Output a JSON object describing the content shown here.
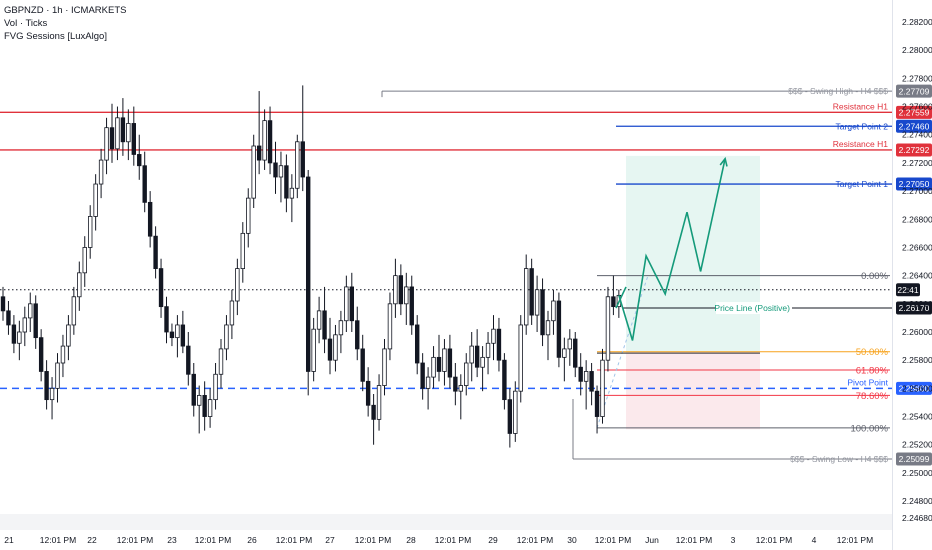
{
  "legend": {
    "symbol_line": "GBPNZD · 1h · ICMARKETS",
    "indicator_1": "Vol · Ticks",
    "indicator_2": "FVG Sessions [LuxAlgo]"
  },
  "colors": {
    "bull": "#ffffff",
    "bear": "#131722",
    "resistance": "#e0323c",
    "target": "#1848cc",
    "pivot": "#2962ff",
    "projection": "#149a7a",
    "fib_50": "#f7a21b",
    "fib_618": "#f23645",
    "fib_786": "#f23645",
    "swing": "#787b86",
    "long_zone": "#e6f6f2",
    "short_zone": "#fbe9ec"
  },
  "chart_data": {
    "type": "candlestick",
    "symbol": "GBPNZD",
    "timeframe": "1h",
    "exchange": "ICMARKETS",
    "ylim": [
      2.2466,
      2.2832
    ],
    "y_ticks": [
      "2.28200",
      "2.28000",
      "2.27800",
      "2.27600",
      "2.27400",
      "2.27200",
      "2.27000",
      "2.26800",
      "2.26600",
      "2.26400",
      "2.26200",
      "2.26000",
      "2.25800",
      "2.25600",
      "2.25400",
      "2.25200",
      "2.25000",
      "2.24800",
      "2.24680"
    ],
    "x_ticks": [
      "21",
      "12:01 PM",
      "22",
      "12:01 PM",
      "23",
      "12:01 PM",
      "26",
      "12:01 PM",
      "27",
      "12:01 PM",
      "28",
      "12:01 PM",
      "29",
      "12:01 PM",
      "30",
      "12:01 PM",
      "Jun",
      "12:01 PM",
      "3",
      "12:01 PM",
      "4",
      "12:01 PM"
    ],
    "price_levels": [
      {
        "label": "$$$ - Swing High - H4 $$$",
        "price": "2.27709",
        "value": 2.27709,
        "style": "swing"
      },
      {
        "label": "Resistance H1",
        "price": "2.27559",
        "value": 2.27559,
        "style": "resistance"
      },
      {
        "label": "Target Point 2",
        "price": "2.27460",
        "value": 2.2746,
        "style": "target"
      },
      {
        "label": "Resistance H1",
        "price": "2.27292",
        "value": 2.27292,
        "style": "resistance"
      },
      {
        "label": "Target Point 1",
        "price": "2.27050",
        "value": 2.2705,
        "style": "target"
      },
      {
        "label": "Price Line (Positive)",
        "price": "2.26170",
        "value": 2.2617,
        "style": "positive"
      },
      {
        "label": "Pivot Point",
        "price": "2.25600",
        "value": 2.256,
        "style": "pivot"
      },
      {
        "label": "$$$ - Swing Low - H4 $$$",
        "price": "2.25099",
        "value": 2.25099,
        "style": "swing"
      }
    ],
    "current_time": "22:41",
    "current_price_value": 2.263,
    "fib_levels": [
      {
        "label": "0.00%",
        "value": 2.264
      },
      {
        "label": "50.00%",
        "value": 2.2586
      },
      {
        "label": "61.80%",
        "value": 2.2573
      },
      {
        "label": "78.60%",
        "value": 2.2555
      },
      {
        "label": "100.00%",
        "value": 2.2532
      }
    ],
    "projection_path": [
      {
        "t": 113.0,
        "value": 2.2626
      },
      {
        "t": 115.5,
        "value": 2.2594
      },
      {
        "t": 118.0,
        "value": 2.2654
      },
      {
        "t": 121.5,
        "value": 2.2627
      },
      {
        "t": 125.5,
        "value": 2.2685
      },
      {
        "t": 128.0,
        "value": 2.2643
      },
      {
        "t": 132.5,
        "value": 2.2723
      }
    ],
    "candles": [
      {
        "o": 2.2625,
        "h": 2.2632,
        "l": 2.2608,
        "c": 2.2615
      },
      {
        "o": 2.2615,
        "h": 2.2622,
        "l": 2.2598,
        "c": 2.2605
      },
      {
        "o": 2.2605,
        "h": 2.2612,
        "l": 2.2585,
        "c": 2.2592
      },
      {
        "o": 2.2592,
        "h": 2.2608,
        "l": 2.258,
        "c": 2.26
      },
      {
        "o": 2.26,
        "h": 2.2618,
        "l": 2.259,
        "c": 2.261
      },
      {
        "o": 2.261,
        "h": 2.2628,
        "l": 2.26,
        "c": 2.262
      },
      {
        "o": 2.262,
        "h": 2.2626,
        "l": 2.2588,
        "c": 2.2596
      },
      {
        "o": 2.2596,
        "h": 2.2602,
        "l": 2.2565,
        "c": 2.2572
      },
      {
        "o": 2.2572,
        "h": 2.258,
        "l": 2.2545,
        "c": 2.2552
      },
      {
        "o": 2.2552,
        "h": 2.2568,
        "l": 2.2538,
        "c": 2.256
      },
      {
        "o": 2.256,
        "h": 2.2585,
        "l": 2.255,
        "c": 2.2578
      },
      {
        "o": 2.2578,
        "h": 2.2598,
        "l": 2.2568,
        "c": 2.259
      },
      {
        "o": 2.259,
        "h": 2.2612,
        "l": 2.258,
        "c": 2.2605
      },
      {
        "o": 2.2605,
        "h": 2.2632,
        "l": 2.2598,
        "c": 2.2625
      },
      {
        "o": 2.2625,
        "h": 2.265,
        "l": 2.2615,
        "c": 2.2642
      },
      {
        "o": 2.2642,
        "h": 2.2668,
        "l": 2.2632,
        "c": 2.266
      },
      {
        "o": 2.266,
        "h": 2.269,
        "l": 2.2652,
        "c": 2.2682
      },
      {
        "o": 2.2682,
        "h": 2.2712,
        "l": 2.2672,
        "c": 2.2705
      },
      {
        "o": 2.2705,
        "h": 2.273,
        "l": 2.2695,
        "c": 2.2722
      },
      {
        "o": 2.2722,
        "h": 2.2752,
        "l": 2.2712,
        "c": 2.2745
      },
      {
        "o": 2.2745,
        "h": 2.2762,
        "l": 2.272,
        "c": 2.273
      },
      {
        "o": 2.273,
        "h": 2.276,
        "l": 2.2722,
        "c": 2.2752
      },
      {
        "o": 2.2752,
        "h": 2.2766,
        "l": 2.2725,
        "c": 2.2735
      },
      {
        "o": 2.2735,
        "h": 2.2758,
        "l": 2.2722,
        "c": 2.2748
      },
      {
        "o": 2.2748,
        "h": 2.276,
        "l": 2.2718,
        "c": 2.2726
      },
      {
        "o": 2.2726,
        "h": 2.274,
        "l": 2.2708,
        "c": 2.2718
      },
      {
        "o": 2.2718,
        "h": 2.2728,
        "l": 2.2685,
        "c": 2.2692
      },
      {
        "o": 2.2692,
        "h": 2.27,
        "l": 2.266,
        "c": 2.2668
      },
      {
        "o": 2.2668,
        "h": 2.2675,
        "l": 2.2638,
        "c": 2.2645
      },
      {
        "o": 2.2645,
        "h": 2.2652,
        "l": 2.261,
        "c": 2.2618
      },
      {
        "o": 2.2618,
        "h": 2.2625,
        "l": 2.2592,
        "c": 2.26
      },
      {
        "o": 2.26,
        "h": 2.2606,
        "l": 2.259,
        "c": 2.2596
      },
      {
        "o": 2.2596,
        "h": 2.2612,
        "l": 2.2582,
        "c": 2.2605
      },
      {
        "o": 2.2605,
        "h": 2.2615,
        "l": 2.2585,
        "c": 2.259
      },
      {
        "o": 2.259,
        "h": 2.26,
        "l": 2.2562,
        "c": 2.257
      },
      {
        "o": 2.257,
        "h": 2.2578,
        "l": 2.254,
        "c": 2.2548
      },
      {
        "o": 2.2548,
        "h": 2.2562,
        "l": 2.2528,
        "c": 2.2555
      },
      {
        "o": 2.2555,
        "h": 2.2565,
        "l": 2.253,
        "c": 2.254
      },
      {
        "o": 2.254,
        "h": 2.256,
        "l": 2.2532,
        "c": 2.2552
      },
      {
        "o": 2.2552,
        "h": 2.2578,
        "l": 2.2545,
        "c": 2.257
      },
      {
        "o": 2.257,
        "h": 2.2595,
        "l": 2.256,
        "c": 2.2588
      },
      {
        "o": 2.2588,
        "h": 2.2612,
        "l": 2.258,
        "c": 2.2605
      },
      {
        "o": 2.2605,
        "h": 2.263,
        "l": 2.2595,
        "c": 2.2622
      },
      {
        "o": 2.2622,
        "h": 2.2652,
        "l": 2.2612,
        "c": 2.2645
      },
      {
        "o": 2.2645,
        "h": 2.2678,
        "l": 2.2635,
        "c": 2.267
      },
      {
        "o": 2.267,
        "h": 2.2702,
        "l": 2.266,
        "c": 2.2695
      },
      {
        "o": 2.2695,
        "h": 2.274,
        "l": 2.2688,
        "c": 2.2732
      },
      {
        "o": 2.2732,
        "h": 2.2771,
        "l": 2.2712,
        "c": 2.2722
      },
      {
        "o": 2.2722,
        "h": 2.2758,
        "l": 2.2715,
        "c": 2.275
      },
      {
        "o": 2.275,
        "h": 2.276,
        "l": 2.2712,
        "c": 2.272
      },
      {
        "o": 2.272,
        "h": 2.2735,
        "l": 2.2698,
        "c": 2.271
      },
      {
        "o": 2.271,
        "h": 2.2728,
        "l": 2.2692,
        "c": 2.2718
      },
      {
        "o": 2.2718,
        "h": 2.2726,
        "l": 2.2685,
        "c": 2.2695
      },
      {
        "o": 2.2695,
        "h": 2.2712,
        "l": 2.2678,
        "c": 2.2702
      },
      {
        "o": 2.2702,
        "h": 2.274,
        "l": 2.2695,
        "c": 2.2735
      },
      {
        "o": 2.2735,
        "h": 2.2775,
        "l": 2.27,
        "c": 2.271
      },
      {
        "o": 2.271,
        "h": 2.2715,
        "l": 2.2555,
        "c": 2.2572
      },
      {
        "o": 2.2572,
        "h": 2.261,
        "l": 2.2565,
        "c": 2.2602
      },
      {
        "o": 2.2602,
        "h": 2.2625,
        "l": 2.2592,
        "c": 2.2615
      },
      {
        "o": 2.2615,
        "h": 2.2632,
        "l": 2.2585,
        "c": 2.2595
      },
      {
        "o": 2.2595,
        "h": 2.261,
        "l": 2.257,
        "c": 2.258
      },
      {
        "o": 2.258,
        "h": 2.2605,
        "l": 2.2572,
        "c": 2.2598
      },
      {
        "o": 2.2598,
        "h": 2.2615,
        "l": 2.2585,
        "c": 2.2608
      },
      {
        "o": 2.2608,
        "h": 2.264,
        "l": 2.26,
        "c": 2.2632
      },
      {
        "o": 2.2632,
        "h": 2.2642,
        "l": 2.26,
        "c": 2.2608
      },
      {
        "o": 2.2608,
        "h": 2.2618,
        "l": 2.258,
        "c": 2.2588
      },
      {
        "o": 2.2588,
        "h": 2.2598,
        "l": 2.2558,
        "c": 2.2565
      },
      {
        "o": 2.2565,
        "h": 2.2575,
        "l": 2.254,
        "c": 2.2548
      },
      {
        "o": 2.2548,
        "h": 2.2556,
        "l": 2.252,
        "c": 2.2538
      },
      {
        "o": 2.2538,
        "h": 2.257,
        "l": 2.253,
        "c": 2.2562
      },
      {
        "o": 2.2562,
        "h": 2.2595,
        "l": 2.2555,
        "c": 2.2588
      },
      {
        "o": 2.2588,
        "h": 2.2628,
        "l": 2.258,
        "c": 2.262
      },
      {
        "o": 2.262,
        "h": 2.2652,
        "l": 2.261,
        "c": 2.264
      },
      {
        "o": 2.264,
        "h": 2.2648,
        "l": 2.2612,
        "c": 2.262
      },
      {
        "o": 2.262,
        "h": 2.2642,
        "l": 2.2605,
        "c": 2.2632
      },
      {
        "o": 2.2632,
        "h": 2.264,
        "l": 2.2598,
        "c": 2.2605
      },
      {
        "o": 2.2605,
        "h": 2.2612,
        "l": 2.257,
        "c": 2.2578
      },
      {
        "o": 2.2578,
        "h": 2.2585,
        "l": 2.2552,
        "c": 2.256
      },
      {
        "o": 2.256,
        "h": 2.2575,
        "l": 2.2545,
        "c": 2.2568
      },
      {
        "o": 2.2568,
        "h": 2.259,
        "l": 2.256,
        "c": 2.2582
      },
      {
        "o": 2.2582,
        "h": 2.2598,
        "l": 2.2565,
        "c": 2.2572
      },
      {
        "o": 2.2572,
        "h": 2.2595,
        "l": 2.2562,
        "c": 2.2588
      },
      {
        "o": 2.2588,
        "h": 2.2598,
        "l": 2.256,
        "c": 2.2568
      },
      {
        "o": 2.2568,
        "h": 2.2578,
        "l": 2.2548,
        "c": 2.2558
      },
      {
        "o": 2.2558,
        "h": 2.257,
        "l": 2.2538,
        "c": 2.2562
      },
      {
        "o": 2.2562,
        "h": 2.2585,
        "l": 2.2555,
        "c": 2.2578
      },
      {
        "o": 2.2578,
        "h": 2.26,
        "l": 2.2565,
        "c": 2.259
      },
      {
        "o": 2.259,
        "h": 2.2602,
        "l": 2.2568,
        "c": 2.2575
      },
      {
        "o": 2.2575,
        "h": 2.259,
        "l": 2.2558,
        "c": 2.2582
      },
      {
        "o": 2.2582,
        "h": 2.26,
        "l": 2.257,
        "c": 2.2592
      },
      {
        "o": 2.2592,
        "h": 2.2612,
        "l": 2.258,
        "c": 2.2602
      },
      {
        "o": 2.2602,
        "h": 2.261,
        "l": 2.2572,
        "c": 2.258
      },
      {
        "o": 2.258,
        "h": 2.2585,
        "l": 2.2545,
        "c": 2.2552
      },
      {
        "o": 2.2552,
        "h": 2.256,
        "l": 2.2518,
        "c": 2.2528
      },
      {
        "o": 2.2528,
        "h": 2.2565,
        "l": 2.2522,
        "c": 2.2558
      },
      {
        "o": 2.2558,
        "h": 2.2612,
        "l": 2.255,
        "c": 2.2605
      },
      {
        "o": 2.2605,
        "h": 2.2655,
        "l": 2.2598,
        "c": 2.2645
      },
      {
        "o": 2.2645,
        "h": 2.2652,
        "l": 2.2605,
        "c": 2.2612
      },
      {
        "o": 2.2612,
        "h": 2.264,
        "l": 2.26,
        "c": 2.263
      },
      {
        "o": 2.263,
        "h": 2.2638,
        "l": 2.259,
        "c": 2.2598
      },
      {
        "o": 2.2598,
        "h": 2.2615,
        "l": 2.258,
        "c": 2.2608
      },
      {
        "o": 2.2608,
        "h": 2.263,
        "l": 2.2598,
        "c": 2.2622
      },
      {
        "o": 2.2622,
        "h": 2.2628,
        "l": 2.2575,
        "c": 2.2582
      },
      {
        "o": 2.2582,
        "h": 2.2596,
        "l": 2.2565,
        "c": 2.2588
      },
      {
        "o": 2.2588,
        "h": 2.2602,
        "l": 2.2576,
        "c": 2.2595
      },
      {
        "o": 2.2595,
        "h": 2.26,
        "l": 2.2568,
        "c": 2.2575
      },
      {
        "o": 2.2575,
        "h": 2.2585,
        "l": 2.2555,
        "c": 2.2565
      },
      {
        "o": 2.2565,
        "h": 2.258,
        "l": 2.2545,
        "c": 2.2572
      },
      {
        "o": 2.2572,
        "h": 2.2578,
        "l": 2.2548,
        "c": 2.2558
      },
      {
        "o": 2.2558,
        "h": 2.2562,
        "l": 2.2528,
        "c": 2.254
      },
      {
        "o": 2.254,
        "h": 2.2588,
        "l": 2.2535,
        "c": 2.258
      },
      {
        "o": 2.258,
        "h": 2.2632,
        "l": 2.2572,
        "c": 2.2625
      },
      {
        "o": 2.2625,
        "h": 2.264,
        "l": 2.2612,
        "c": 2.2618
      },
      {
        "o": 2.2618,
        "h": 2.263,
        "l": 2.261,
        "c": 2.2626
      }
    ]
  }
}
